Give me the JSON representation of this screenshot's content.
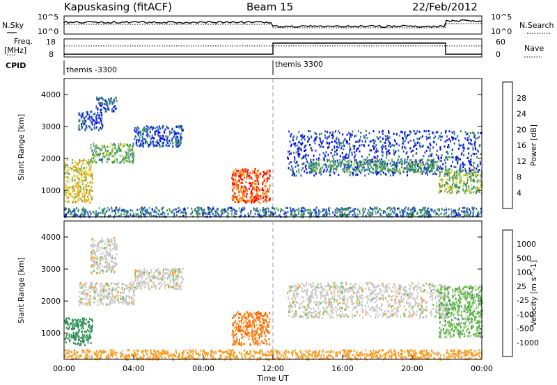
{
  "header": {
    "station": "Kapuskasing (fitACF)",
    "beam": "Beam 15",
    "date": "22/Feb/2012"
  },
  "summary": {
    "nsky_label": "N.Sky",
    "nsky_ticks": [
      "10^5",
      "10^0"
    ],
    "nsearch_label": "N.Search",
    "nsearch_ticks": [
      "10^5",
      "10^0"
    ],
    "freq_label_line1": "Freq.",
    "freq_label_line2": "[MHz]",
    "freq_ticks": [
      "18",
      "8"
    ],
    "nave_label": "Nave",
    "nave_ticks": [
      "60",
      "0"
    ],
    "cpid_label": "CPID",
    "cpid_segments": [
      {
        "label": "themis -3300",
        "start_hour": 0,
        "end_hour": 12
      },
      {
        "label": "themis 3300",
        "start_hour": 12,
        "end_hour": 24
      }
    ]
  },
  "axes": {
    "ylabel": "Slant Range [km]",
    "xlabel": "Time UT",
    "x_ticks": [
      "00:00",
      "04:00",
      "08:00",
      "12:00",
      "16:00",
      "20:00",
      "00:00"
    ],
    "y_ticks": [
      "1000",
      "2000",
      "3000",
      "4000"
    ]
  },
  "power_colorbar": {
    "label": "Power [dB]",
    "ticks": [
      "28",
      "24",
      "20",
      "16",
      "12",
      "8",
      "4"
    ],
    "colors": [
      "#0000ff",
      "#2a4fd8",
      "#2e8f55",
      "#66b266",
      "#e8d233",
      "#ff9900",
      "#ff5a00",
      "#ff0000"
    ]
  },
  "velocity_colorbar": {
    "label": "Velocity [m s^-1]",
    "ticks": [
      "1000",
      "500",
      "100",
      "25",
      "-25",
      "-100",
      "-500",
      "-1000"
    ],
    "colors": [
      "#1d2ad6",
      "#2a74b8",
      "#2e8f55",
      "#5fbf3a",
      "#c8c8c8",
      "#ff9a1a",
      "#ff6a00",
      "#ff3300",
      "#ee0000"
    ]
  },
  "chart_data": [
    {
      "type": "heatmap",
      "title": "Power",
      "xlabel": "Time UT",
      "ylabel": "Slant Range [km]",
      "xlim": [
        0,
        24
      ],
      "ylim": [
        180,
        4500
      ],
      "colorbar_label": "Power [dB]",
      "colorbar_range": [
        0,
        30
      ],
      "echo_regions": [
        {
          "t0": 0.0,
          "t1": 1.6,
          "r0": 650,
          "r1": 2000,
          "value": 17
        },
        {
          "t0": 0.8,
          "t1": 2.2,
          "r0": 2900,
          "r1": 3500,
          "value": 5
        },
        {
          "t0": 1.8,
          "t1": 3.0,
          "r0": 3500,
          "r1": 3950,
          "value": 6
        },
        {
          "t0": 1.5,
          "t1": 4.0,
          "r0": 1900,
          "r1": 2500,
          "value": 12
        },
        {
          "t0": 4.0,
          "t1": 6.8,
          "r0": 2400,
          "r1": 3050,
          "value": 6
        },
        {
          "t0": 9.6,
          "t1": 11.8,
          "r0": 650,
          "r1": 1700,
          "value": 25
        },
        {
          "t0": 12.8,
          "t1": 24.0,
          "r0": 1500,
          "r1": 2900,
          "value": 5
        },
        {
          "t0": 14.0,
          "t1": 21.5,
          "r0": 1600,
          "r1": 2000,
          "value": 11
        },
        {
          "t0": 21.5,
          "t1": 24.0,
          "r0": 950,
          "r1": 1700,
          "value": 14
        },
        {
          "t0": 0.0,
          "t1": 24.0,
          "r0": 200,
          "r1": 500,
          "value": 8
        }
      ]
    },
    {
      "type": "heatmap",
      "title": "Velocity",
      "xlabel": "Time UT",
      "ylabel": "Slant Range [km]",
      "xlim": [
        0,
        24
      ],
      "ylim": [
        180,
        4500
      ],
      "colorbar_label": "Velocity [m s^-1]",
      "colorbar_range": [
        -1000,
        1000
      ],
      "echo_regions": [
        {
          "t0": 0.0,
          "t1": 1.6,
          "r0": 650,
          "r1": 1500,
          "value": 100
        },
        {
          "t0": 0.8,
          "t1": 4.0,
          "r0": 1900,
          "r1": 2600,
          "value": 0
        },
        {
          "t0": 1.5,
          "t1": 3.0,
          "r0": 2900,
          "r1": 4000,
          "value": 0
        },
        {
          "t0": 4.0,
          "t1": 6.8,
          "r0": 2400,
          "r1": 3050,
          "value": 0
        },
        {
          "t0": 9.6,
          "t1": 11.8,
          "r0": 650,
          "r1": 1700,
          "value": -150
        },
        {
          "t0": 12.8,
          "t1": 22.0,
          "r0": 1500,
          "r1": 2600,
          "value": 0
        },
        {
          "t0": 21.5,
          "t1": 24.0,
          "r0": 900,
          "r1": 2500,
          "value": 40
        },
        {
          "t0": 0.0,
          "t1": 24.0,
          "r0": 200,
          "r1": 500,
          "value": -50
        }
      ]
    }
  ]
}
